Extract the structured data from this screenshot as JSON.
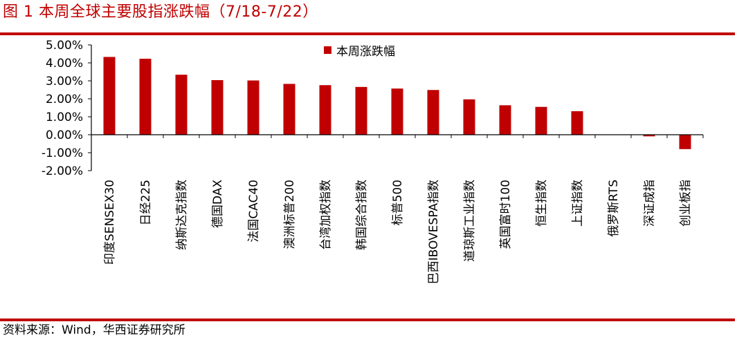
{
  "figure": {
    "title": "图 1  本周全球主要股指涨跌幅（7/18-7/22）",
    "source": "资料来源：Wind，华西证券研究所"
  },
  "colors": {
    "accent": "#c00000",
    "bar": "#c00000",
    "axis": "#000000"
  },
  "chart_data": {
    "type": "bar",
    "title": "",
    "xlabel": "",
    "ylabel": "",
    "ylim": [
      -2.0,
      5.0
    ],
    "yticks": [
      5.0,
      4.0,
      3.0,
      2.0,
      1.0,
      0.0,
      -1.0,
      -2.0
    ],
    "ytick_labels": [
      "5.00%",
      "4.00%",
      "3.00%",
      "2.00%",
      "1.00%",
      "0.00%",
      "-1.00%",
      "-2.00%"
    ],
    "grid": false,
    "legend_position": "top-center",
    "categories": [
      "印度SENSEX30",
      "日经225",
      "纳斯达克指数",
      "德国DAX",
      "法国CAC40",
      "澳洲标普200",
      "台湾加权指数",
      "韩国综合指数",
      "标普500",
      "巴西IBOVESPA指数",
      "道琼斯工业指数",
      "英国富时100",
      "恒生指数",
      "上证指数",
      "俄罗斯RTS",
      "深证成指",
      "创业板指"
    ],
    "series": [
      {
        "name": "本周涨跌幅",
        "values": [
          4.33,
          4.23,
          3.34,
          3.04,
          3.02,
          2.83,
          2.76,
          2.66,
          2.57,
          2.49,
          1.97,
          1.64,
          1.55,
          1.31,
          0.0,
          -0.09,
          -0.8
        ]
      }
    ]
  }
}
